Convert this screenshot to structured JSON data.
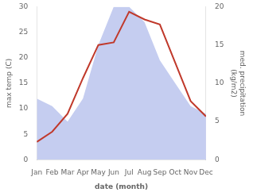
{
  "chart_data": {
    "type": "line",
    "xlabel": "date (month)",
    "ylabel": "max temp (C)",
    "y2label": "med. precipitation\n(kg/m2)",
    "categories": [
      "Jan",
      "Feb",
      "Mar",
      "Apr",
      "May",
      "Jun",
      "Jul",
      "Aug",
      "Sep",
      "Oct",
      "Nov",
      "Dec"
    ],
    "series": [
      {
        "type": "area",
        "axis": "y2",
        "color": "#c5cdf0",
        "values": [
          8.0,
          7.0,
          5.0,
          8.0,
          15.0,
          20.0,
          20.0,
          18.0,
          13.0,
          10.0,
          7.0,
          6.0
        ]
      },
      {
        "type": "line",
        "color": "#c0392b",
        "values": [
          3.5,
          5.5,
          9.0,
          16.0,
          22.5,
          23.0,
          29.0,
          27.5,
          26.5,
          19.0,
          11.5,
          8.5
        ]
      }
    ],
    "ylim": [
      0,
      30
    ],
    "yticks": [
      0,
      5,
      10,
      15,
      20,
      25,
      30
    ],
    "y2lim": [
      0,
      20
    ],
    "y2ticks": [
      0,
      5,
      10,
      15,
      20
    ],
    "grid": false
  }
}
